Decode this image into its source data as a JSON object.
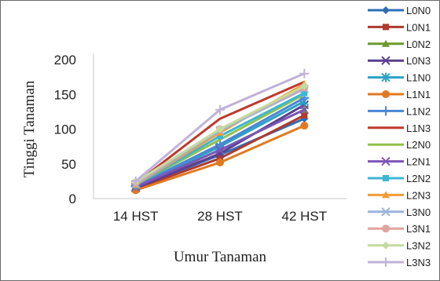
{
  "chart_data": {
    "type": "line",
    "title": "",
    "xlabel": "Umur Tanaman",
    "ylabel": "Tinggi Tanaman",
    "categories": [
      "14 HST",
      "28 HST",
      "42 HST"
    ],
    "ylim": [
      0,
      200
    ],
    "yticks": [
      0,
      50,
      100,
      150,
      200
    ],
    "grid": false,
    "legend_position": "right",
    "series": [
      {
        "name": "L0N0",
        "color": "#2f6eb5",
        "marker": "diamond",
        "values": [
          15,
          63,
          115
        ]
      },
      {
        "name": "L0N1",
        "color": "#b03a2e",
        "marker": "square",
        "values": [
          14,
          58,
          120
        ]
      },
      {
        "name": "L0N2",
        "color": "#6b9a2f",
        "marker": "triangle",
        "values": [
          16,
          70,
          128
        ]
      },
      {
        "name": "L0N3",
        "color": "#5b3f8e",
        "marker": "x",
        "values": [
          15,
          65,
          135
        ]
      },
      {
        "name": "L1N0",
        "color": "#2aa3c4",
        "marker": "star",
        "values": [
          17,
          75,
          140
        ]
      },
      {
        "name": "L1N1",
        "color": "#e07a1f",
        "marker": "circle",
        "values": [
          12,
          52,
          105
        ]
      },
      {
        "name": "L1N2",
        "color": "#4a86d6",
        "marker": "plus",
        "values": [
          18,
          78,
          145
        ]
      },
      {
        "name": "L1N3",
        "color": "#c0392b",
        "marker": "none",
        "values": [
          22,
          115,
          168
        ]
      },
      {
        "name": "L2N0",
        "color": "#92c04a",
        "marker": "none",
        "values": [
          20,
          85,
          150
        ]
      },
      {
        "name": "L2N1",
        "color": "#7d55b8",
        "marker": "x",
        "values": [
          17,
          70,
          128
        ]
      },
      {
        "name": "L2N2",
        "color": "#3cb6d3",
        "marker": "square",
        "values": [
          19,
          90,
          152
        ]
      },
      {
        "name": "L2N3",
        "color": "#f39c34",
        "marker": "triangle",
        "values": [
          20,
          95,
          165
        ]
      },
      {
        "name": "L3N0",
        "color": "#9db3dc",
        "marker": "x",
        "values": [
          21,
          98,
          158
        ]
      },
      {
        "name": "L3N1",
        "color": "#e0a39e",
        "marker": "circle",
        "values": [
          23,
          100,
          160
        ]
      },
      {
        "name": "L3N2",
        "color": "#c4dba0",
        "marker": "diamond",
        "values": [
          24,
          100,
          162
        ]
      },
      {
        "name": "L3N3",
        "color": "#c0b2d8",
        "marker": "plus",
        "values": [
          25,
          128,
          180
        ]
      }
    ]
  }
}
